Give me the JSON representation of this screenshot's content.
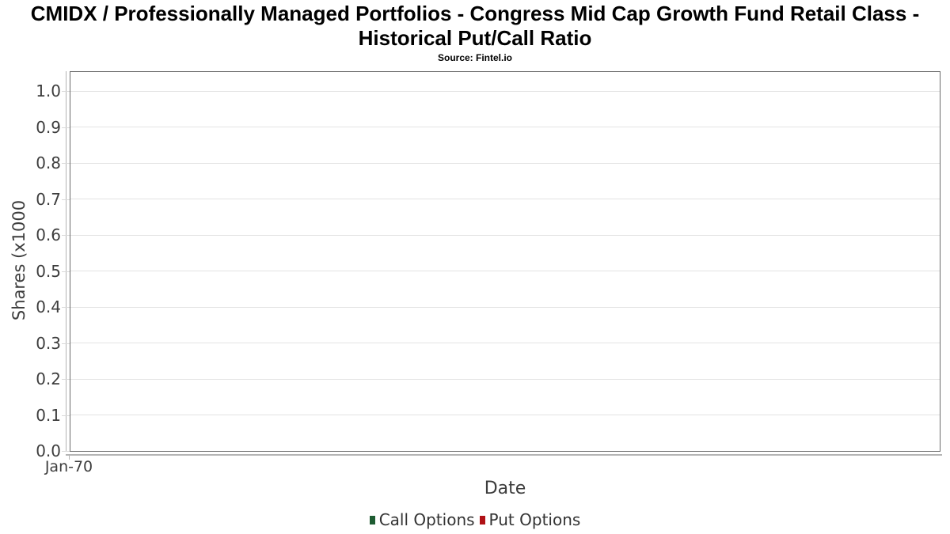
{
  "chart_data": {
    "type": "line",
    "title": "CMIDX / Professionally Managed Portfolios - Congress Mid Cap Growth Fund Retail Class - Historical Put/Call Ratio",
    "subtitle": "Source: Fintel.io",
    "xlabel": "Date",
    "ylabel": "Shares (x1000",
    "x_ticks": [
      "Jan-70"
    ],
    "y_ticks": [
      "1.0",
      "0.9",
      "0.8",
      "0.7",
      "0.6",
      "0.5",
      "0.4",
      "0.3",
      "0.2",
      "0.1",
      "0.0"
    ],
    "ylim": [
      0,
      1.05
    ],
    "grid": "horizontal",
    "legend_position": "bottom",
    "legend": [
      {
        "label": "Call Options",
        "color": "#1e5c32"
      },
      {
        "label": "Put Options",
        "color": "#b01116"
      }
    ],
    "series": [
      {
        "name": "Call Options",
        "color": "#1e5c32",
        "x": [],
        "values": []
      },
      {
        "name": "Put Options",
        "color": "#b01116",
        "x": [],
        "values": []
      }
    ],
    "plot_empty": true
  },
  "colors": {
    "plot_border": "#6b6b6b",
    "gridline": "#e3e3e3",
    "axis_line": "#b3b3b3",
    "tick_text": "#3d3d3d"
  }
}
